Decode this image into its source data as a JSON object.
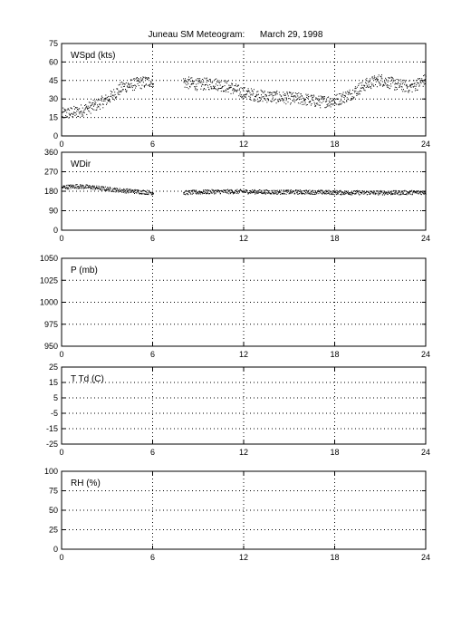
{
  "title": "Juneau SM Meteogram:      March 29, 1998",
  "chart_data": [
    {
      "type": "scatter",
      "label": "WSpd (kts)",
      "xlim": [
        0,
        24
      ],
      "ylim": [
        0,
        75
      ],
      "xticks": [
        "0",
        "6",
        "12",
        "18",
        "24"
      ],
      "yticks": [
        "0",
        "15",
        "30",
        "45",
        "60",
        "75"
      ],
      "grid": true,
      "trend": [
        [
          0,
          18
        ],
        [
          1,
          20
        ],
        [
          2,
          24
        ],
        [
          3,
          30
        ],
        [
          4,
          40
        ],
        [
          5,
          43
        ],
        [
          6,
          45
        ],
        [
          8,
          44
        ],
        [
          9,
          42
        ],
        [
          10,
          43
        ],
        [
          11,
          40
        ],
        [
          12,
          35
        ],
        [
          13,
          33
        ],
        [
          14,
          32
        ],
        [
          15,
          31
        ],
        [
          16,
          30
        ],
        [
          17,
          28
        ],
        [
          18,
          29
        ],
        [
          19,
          34
        ],
        [
          20,
          42
        ],
        [
          21,
          46
        ],
        [
          22,
          42
        ],
        [
          23,
          40
        ],
        [
          24,
          46
        ]
      ],
      "spread": 5,
      "gap": [
        6.05,
        8.0
      ]
    },
    {
      "type": "scatter",
      "label": "WDir",
      "xlim": [
        0,
        24
      ],
      "ylim": [
        0,
        360
      ],
      "xticks": [
        "0",
        "6",
        "12",
        "18",
        "24"
      ],
      "yticks": [
        "0",
        "90",
        "180",
        "270",
        "360"
      ],
      "grid": true,
      "trend": [
        [
          0,
          200
        ],
        [
          1,
          205
        ],
        [
          2,
          200
        ],
        [
          3,
          192
        ],
        [
          4,
          185
        ],
        [
          5,
          180
        ],
        [
          6,
          175
        ],
        [
          8,
          175
        ],
        [
          10,
          180
        ],
        [
          12,
          180
        ],
        [
          14,
          178
        ],
        [
          16,
          178
        ],
        [
          18,
          176
        ],
        [
          20,
          175
        ],
        [
          22,
          175
        ],
        [
          24,
          177
        ]
      ],
      "spread": 10,
      "gap": [
        6.05,
        8.0
      ]
    },
    {
      "type": "scatter",
      "label": "P (mb)",
      "xlim": [
        0,
        24
      ],
      "ylim": [
        950,
        1050
      ],
      "xticks": [
        "0",
        "6",
        "12",
        "18",
        "24"
      ],
      "yticks": [
        "950",
        "975",
        "1000",
        "1025",
        "1050"
      ],
      "grid": true,
      "trend": [],
      "spread": 0,
      "gap": null
    },
    {
      "type": "scatter",
      "label": "T Td (C)",
      "xlim": [
        0,
        24
      ],
      "ylim": [
        -25,
        25
      ],
      "xticks": [
        "0",
        "6",
        "12",
        "18",
        "24"
      ],
      "yticks": [
        "-25",
        "-15",
        "-5",
        "5",
        "15",
        "25"
      ],
      "grid": true,
      "trend": [],
      "spread": 0,
      "gap": null
    },
    {
      "type": "scatter",
      "label": "RH (%)",
      "xlim": [
        0,
        24
      ],
      "ylim": [
        0,
        100
      ],
      "xticks": [
        "0",
        "6",
        "12",
        "18",
        "24"
      ],
      "yticks": [
        "0",
        "25",
        "50",
        "75",
        "100"
      ],
      "grid": true,
      "trend": [],
      "spread": 0,
      "gap": null
    }
  ]
}
